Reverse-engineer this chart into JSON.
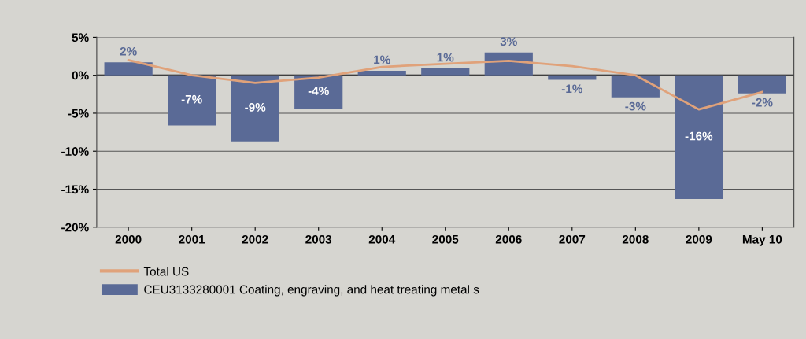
{
  "chart_data": {
    "type": "bar",
    "categories": [
      "2000",
      "2001",
      "2002",
      "2003",
      "2004",
      "2005",
      "2006",
      "2007",
      "2008",
      "2009",
      "May 10"
    ],
    "series": [
      {
        "name": "Total US",
        "type": "line",
        "color": "#e0a27a",
        "values": [
          2.0,
          0.0,
          -1.0,
          -0.3,
          1.1,
          1.5,
          1.9,
          1.2,
          0.0,
          -4.5,
          -2.2
        ]
      },
      {
        "name": "CEU3133280001 Coating, engraving, and heat treating metal s",
        "color": "#5a6a96",
        "values": [
          1.7,
          -6.6,
          -8.7,
          -4.4,
          0.6,
          0.9,
          3.0,
          -0.6,
          -2.9,
          -16.3,
          -2.4
        ],
        "value_labels": [
          "2%",
          "-7%",
          "-9%",
          "-4%",
          "1%",
          "1%",
          "3%",
          "-1%",
          "-3%",
          "-16%",
          "-2%"
        ]
      }
    ],
    "ylim": [
      -20,
      5
    ],
    "yticks": [
      {
        "value": -20,
        "label": "-20%"
      },
      {
        "value": -15,
        "label": "-15%"
      },
      {
        "value": -10,
        "label": "-10%"
      },
      {
        "value": -5,
        "label": "-5%"
      },
      {
        "value": 0,
        "label": "0%"
      },
      {
        "value": 5,
        "label": "5%"
      }
    ],
    "grid": "y",
    "legend": "bottom left"
  }
}
